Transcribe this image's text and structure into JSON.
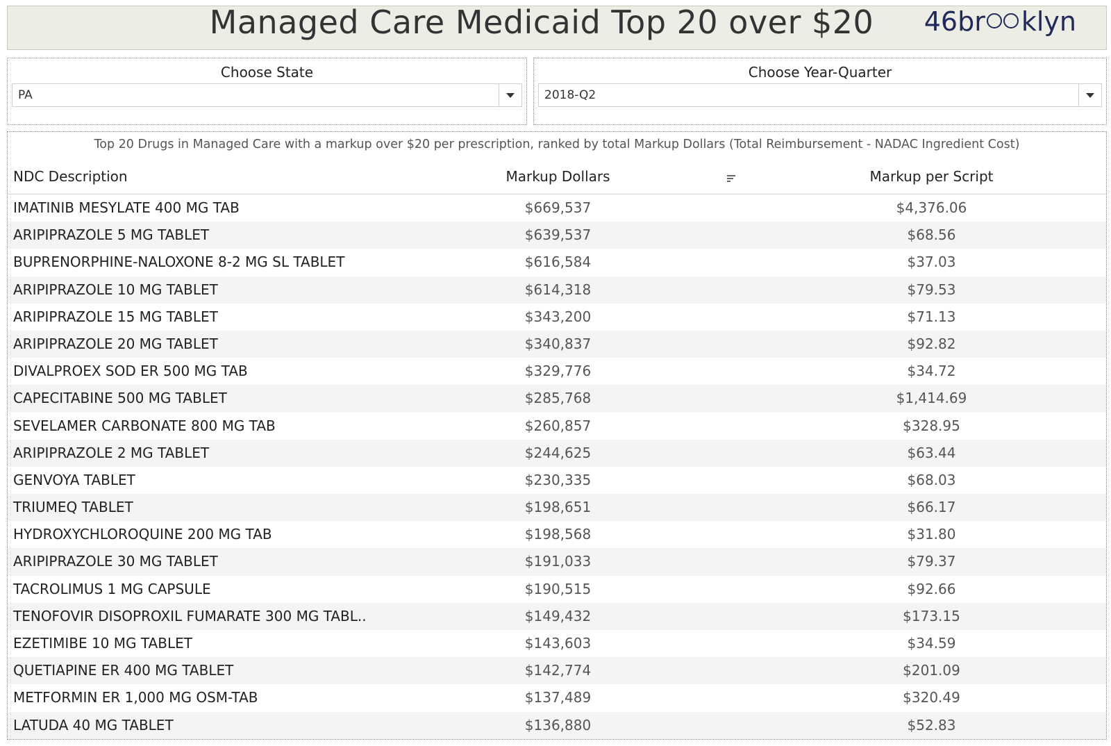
{
  "header": {
    "title": "Managed Care Medicaid Top 20 over $20",
    "logo_prefix": "46br",
    "logo_suffix": "klyn"
  },
  "filters": {
    "state": {
      "label": "Choose State",
      "value": "PA"
    },
    "year_quarter": {
      "label": "Choose Year-Quarter",
      "value": "2018-Q2"
    }
  },
  "table": {
    "subtitle": "Top 20 Drugs in Managed Care  with a markup over $20 per prescription, ranked by total Markup Dollars (Total Reimbursement - NADAC Ingredient Cost)",
    "columns": [
      "NDC Description",
      "Markup Dollars",
      "Markup per Script"
    ],
    "rows": [
      {
        "ndc": "IMATINIB MESYLATE 400 MG TAB",
        "markup": "$669,537",
        "per_script": "$4,376.06"
      },
      {
        "ndc": "ARIPIPRAZOLE 5 MG TABLET",
        "markup": "$639,537",
        "per_script": "$68.56"
      },
      {
        "ndc": "BUPRENORPHINE-NALOXONE 8-2 MG SL TABLET",
        "markup": "$616,584",
        "per_script": "$37.03"
      },
      {
        "ndc": "ARIPIPRAZOLE 10 MG TABLET",
        "markup": "$614,318",
        "per_script": "$79.53"
      },
      {
        "ndc": "ARIPIPRAZOLE 15 MG TABLET",
        "markup": "$343,200",
        "per_script": "$71.13"
      },
      {
        "ndc": "ARIPIPRAZOLE 20 MG TABLET",
        "markup": "$340,837",
        "per_script": "$92.82"
      },
      {
        "ndc": "DIVALPROEX SOD ER 500 MG TAB",
        "markup": "$329,776",
        "per_script": "$34.72"
      },
      {
        "ndc": "CAPECITABINE 500 MG TABLET",
        "markup": "$285,768",
        "per_script": "$1,414.69"
      },
      {
        "ndc": "SEVELAMER CARBONATE 800 MG TAB",
        "markup": "$260,857",
        "per_script": "$328.95"
      },
      {
        "ndc": "ARIPIPRAZOLE 2 MG TABLET",
        "markup": "$244,625",
        "per_script": "$63.44"
      },
      {
        "ndc": "GENVOYA TABLET",
        "markup": "$230,335",
        "per_script": "$68.03"
      },
      {
        "ndc": "TRIUMEQ TABLET",
        "markup": "$198,651",
        "per_script": "$66.17"
      },
      {
        "ndc": "HYDROXYCHLOROQUINE 200 MG TAB",
        "markup": "$198,568",
        "per_script": "$31.80"
      },
      {
        "ndc": "ARIPIPRAZOLE 30 MG TABLET",
        "markup": "$191,033",
        "per_script": "$79.37"
      },
      {
        "ndc": "TACROLIMUS 1 MG CAPSULE",
        "markup": "$190,515",
        "per_script": "$92.66"
      },
      {
        "ndc": "TENOFOVIR DISOPROXIL FUMARATE 300 MG TABL..",
        "markup": "$149,432",
        "per_script": "$173.15"
      },
      {
        "ndc": "EZETIMIBE 10 MG TABLET",
        "markup": "$143,603",
        "per_script": "$34.59"
      },
      {
        "ndc": "QUETIAPINE ER 400 MG TABLET",
        "markup": "$142,774",
        "per_script": "$201.09"
      },
      {
        "ndc": "METFORMIN ER 1,000 MG OSM-TAB",
        "markup": "$137,489",
        "per_script": "$320.49"
      },
      {
        "ndc": "LATUDA 40 MG TABLET",
        "markup": "$136,880",
        "per_script": "$52.83"
      }
    ]
  }
}
